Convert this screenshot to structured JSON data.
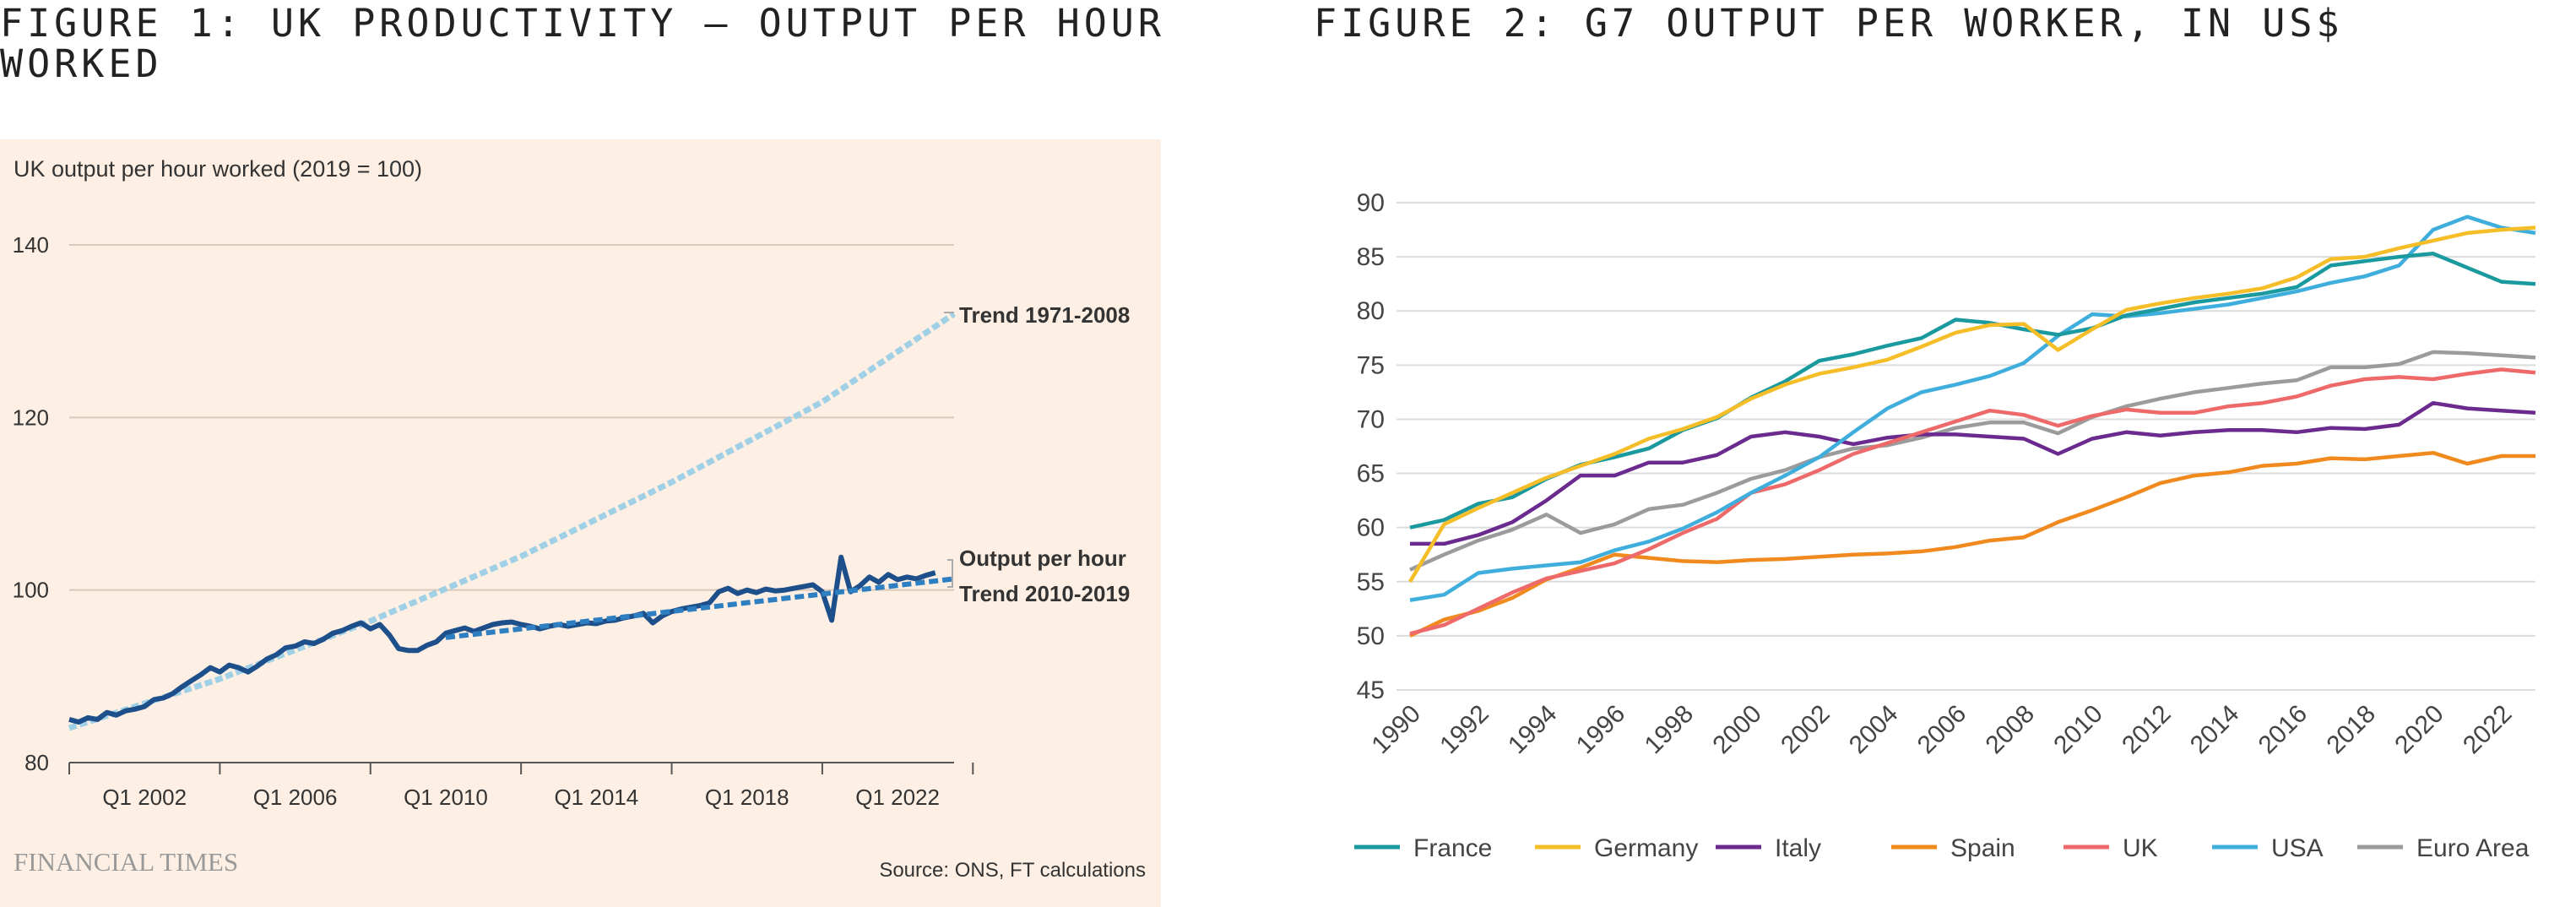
{
  "figure1": {
    "heading": "FIGURE 1: UK PRODUCTIVITY – OUTPUT PER HOUR WORKED",
    "chart_data": {
      "type": "line",
      "title": "UK output per hour worked (2019 = 100)",
      "ylim": [
        80,
        140
      ],
      "yticks": [
        80,
        100,
        120,
        140
      ],
      "xlim": [
        2000,
        2023.5
      ],
      "xtick_labels": [
        {
          "label": "Q1 2002",
          "x": 2002
        },
        {
          "label": "Q1 2006",
          "x": 2006
        },
        {
          "label": "Q1 2010",
          "x": 2010
        },
        {
          "label": "Q1 2014",
          "x": 2014
        },
        {
          "label": "Q1 2018",
          "x": 2018
        },
        {
          "label": "Q1 2022",
          "x": 2022
        }
      ],
      "series": [
        {
          "name": "Output per hour",
          "color": "#1d4f8a",
          "style": "solid",
          "x": [
            2000.0,
            2000.25,
            2000.5,
            2000.75,
            2001.0,
            2001.25,
            2001.5,
            2001.75,
            2002.0,
            2002.25,
            2002.5,
            2002.75,
            2003.0,
            2003.25,
            2003.5,
            2003.75,
            2004.0,
            2004.25,
            2004.5,
            2004.75,
            2005.0,
            2005.25,
            2005.5,
            2005.75,
            2006.0,
            2006.25,
            2006.5,
            2006.75,
            2007.0,
            2007.25,
            2007.5,
            2007.75,
            2008.0,
            2008.25,
            2008.5,
            2008.75,
            2009.0,
            2009.25,
            2009.5,
            2009.75,
            2010.0,
            2010.25,
            2010.5,
            2010.75,
            2011.0,
            2011.25,
            2011.5,
            2011.75,
            2012.0,
            2012.25,
            2012.5,
            2012.75,
            2013.0,
            2013.25,
            2013.5,
            2013.75,
            2014.0,
            2014.25,
            2014.5,
            2014.75,
            2015.0,
            2015.25,
            2015.5,
            2015.75,
            2016.0,
            2016.25,
            2016.5,
            2016.75,
            2017.0,
            2017.25,
            2017.5,
            2017.75,
            2018.0,
            2018.25,
            2018.5,
            2018.75,
            2019.0,
            2019.25,
            2019.5,
            2019.75,
            2020.0,
            2020.25,
            2020.5,
            2020.75,
            2021.0,
            2021.25,
            2021.5,
            2021.75,
            2022.0,
            2022.25,
            2022.5,
            2022.75,
            2023.0
          ],
          "values": [
            85.0,
            84.7,
            85.2,
            85.0,
            85.8,
            85.5,
            86.0,
            86.2,
            86.5,
            87.3,
            87.5,
            88.0,
            88.8,
            89.5,
            90.2,
            91.0,
            90.5,
            91.3,
            91.0,
            90.5,
            91.2,
            92.0,
            92.5,
            93.3,
            93.5,
            94.0,
            93.8,
            94.3,
            95.0,
            95.3,
            95.8,
            96.2,
            95.5,
            96.0,
            94.8,
            93.2,
            93.0,
            93.0,
            93.6,
            94.0,
            95.0,
            95.3,
            95.6,
            95.2,
            95.6,
            96.0,
            96.2,
            96.3,
            96.0,
            95.8,
            95.5,
            95.8,
            96.0,
            95.8,
            96.0,
            96.2,
            96.1,
            96.4,
            96.5,
            96.8,
            97.0,
            97.3,
            96.2,
            97.0,
            97.5,
            97.8,
            98.0,
            98.2,
            98.5,
            99.8,
            100.2,
            99.6,
            100.0,
            99.7,
            100.1,
            99.9,
            100.0,
            100.2,
            100.4,
            100.6,
            99.8,
            96.5,
            103.8,
            99.8,
            100.5,
            101.5,
            100.9,
            101.8,
            101.2,
            101.5,
            101.3,
            101.7,
            102.0
          ]
        },
        {
          "name": "Trend 1971-2008",
          "color": "#9fd0e6",
          "style": "dotted",
          "x": [
            2000,
            2004,
            2008,
            2012,
            2016,
            2020,
            2023.5
          ],
          "values": [
            84.0,
            89.7,
            96.4,
            103.9,
            112.5,
            121.8,
            132.0
          ]
        },
        {
          "name": "Trend 2010-2019",
          "color": "#2e7fc2",
          "style": "dashed",
          "x": [
            2010,
            2023.5
          ],
          "values": [
            94.5,
            101.3
          ]
        }
      ],
      "annotations": [
        "Trend 1971-2008",
        "Output per hour",
        "Trend 2010-2019"
      ]
    },
    "branding": "FINANCIAL TIMES",
    "source": "Source: ONS, FT calculations"
  },
  "figure2": {
    "heading": "FIGURE 2: G7 OUTPUT PER WORKER, IN US$",
    "chart_data": {
      "type": "line",
      "ylim": [
        45,
        90
      ],
      "yticks": [
        45,
        50,
        55,
        60,
        65,
        70,
        75,
        80,
        85,
        90
      ],
      "x": [
        1990,
        1991,
        1992,
        1993,
        1994,
        1995,
        1996,
        1997,
        1998,
        1999,
        2000,
        2001,
        2002,
        2003,
        2004,
        2005,
        2006,
        2007,
        2008,
        2009,
        2010,
        2011,
        2012,
        2013,
        2014,
        2015,
        2016,
        2017,
        2018,
        2019,
        2020,
        2021,
        2022,
        2023
      ],
      "xtick_labels": [
        "1990",
        "1992",
        "1994",
        "1996",
        "1998",
        "2000",
        "2002",
        "2004",
        "2006",
        "2008",
        "2010",
        "2012",
        "2014",
        "2016",
        "2018",
        "2020",
        "2022"
      ],
      "series": [
        {
          "name": "France",
          "color": "#1a9a9e",
          "values": [
            60.0,
            60.7,
            62.2,
            62.8,
            64.5,
            65.8,
            66.5,
            67.3,
            69.0,
            70.1,
            72.0,
            73.5,
            75.4,
            76.0,
            76.8,
            77.5,
            79.2,
            78.9,
            78.3,
            77.8,
            78.4,
            79.6,
            80.2,
            80.8,
            81.2,
            81.6,
            82.2,
            84.2,
            84.6,
            85.0,
            85.3,
            84.0,
            82.7,
            82.5
          ]
        },
        {
          "name": "Germany",
          "color": "#f5be28",
          "values": [
            55.0,
            60.3,
            61.8,
            63.2,
            64.6,
            65.7,
            66.8,
            68.2,
            69.1,
            70.2,
            71.9,
            73.2,
            74.2,
            74.8,
            75.5,
            76.7,
            78.0,
            78.7,
            78.8,
            76.4,
            78.3,
            80.1,
            80.7,
            81.2,
            81.6,
            82.1,
            83.1,
            84.8,
            85.0,
            85.8,
            86.5,
            87.2,
            87.5,
            87.7
          ]
        },
        {
          "name": "Italy",
          "color": "#6a2a8e",
          "values": [
            58.5,
            58.5,
            59.3,
            60.5,
            62.5,
            64.8,
            64.8,
            66.0,
            66.0,
            66.7,
            68.4,
            68.8,
            68.4,
            67.7,
            68.3,
            68.6,
            68.6,
            68.4,
            68.2,
            66.8,
            68.2,
            68.8,
            68.5,
            68.8,
            69.0,
            69.0,
            68.8,
            69.2,
            69.1,
            69.5,
            71.5,
            71.0,
            70.8,
            70.6
          ]
        },
        {
          "name": "Spain",
          "color": "#f08a1e",
          "values": [
            50.0,
            51.5,
            52.3,
            53.5,
            55.2,
            56.3,
            57.5,
            57.2,
            56.9,
            56.8,
            57.0,
            57.1,
            57.3,
            57.5,
            57.6,
            57.8,
            58.2,
            58.8,
            59.1,
            60.5,
            61.6,
            62.8,
            64.1,
            64.8,
            65.1,
            65.7,
            65.9,
            66.4,
            66.3,
            66.6,
            66.9,
            65.9,
            66.6,
            66.6
          ]
        },
        {
          "name": "UK",
          "color": "#ee6a6a",
          "values": [
            50.2,
            51.0,
            52.5,
            54.0,
            55.3,
            56.0,
            56.7,
            58.0,
            59.5,
            60.8,
            63.2,
            64.0,
            65.3,
            66.8,
            67.8,
            68.8,
            69.8,
            70.8,
            70.4,
            69.4,
            70.3,
            70.9,
            70.6,
            70.6,
            71.2,
            71.5,
            72.1,
            73.1,
            73.7,
            73.9,
            73.7,
            74.2,
            74.6,
            74.3
          ]
        },
        {
          "name": "USA",
          "color": "#40aedc",
          "values": [
            53.3,
            53.8,
            55.8,
            56.2,
            56.5,
            56.8,
            57.9,
            58.7,
            59.9,
            61.4,
            63.2,
            64.8,
            66.5,
            68.8,
            71.0,
            72.5,
            73.2,
            74.0,
            75.2,
            77.7,
            79.7,
            79.5,
            79.8,
            80.2,
            80.6,
            81.2,
            81.8,
            82.6,
            83.2,
            84.2,
            87.5,
            88.7,
            87.7,
            87.2
          ]
        },
        {
          "name": "Euro Area",
          "color": "#9b9b9b",
          "values": [
            56.1,
            57.5,
            58.8,
            59.8,
            61.2,
            59.5,
            60.3,
            61.7,
            62.1,
            63.2,
            64.5,
            65.3,
            66.5,
            67.3,
            67.6,
            68.3,
            69.2,
            69.7,
            69.7,
            68.7,
            70.2,
            71.2,
            71.9,
            72.5,
            72.9,
            73.3,
            73.6,
            74.8,
            74.8,
            75.1,
            76.2,
            76.1,
            75.9,
            75.7
          ]
        }
      ]
    }
  }
}
